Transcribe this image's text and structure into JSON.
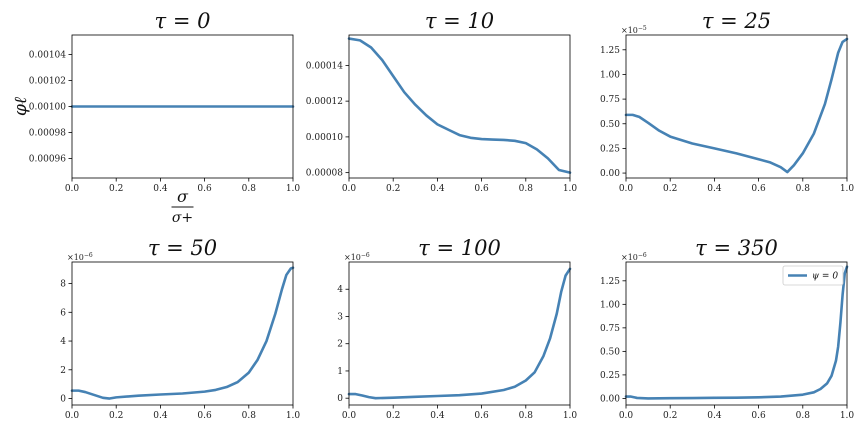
{
  "chart_data": [
    {
      "type": "line",
      "title": "τ = 0",
      "ylabel": "φℓ",
      "xlabel_num": "σ",
      "xlabel_den": "σ+",
      "multiplier": "",
      "xlim": [
        0,
        1
      ],
      "ylim": [
        0.000945,
        0.001055
      ],
      "xticks": [
        0,
        0.2,
        0.4,
        0.6,
        0.8,
        1.0
      ],
      "xtick_labels": [
        "0.0",
        "0.2",
        "0.4",
        "0.6",
        "0.8",
        "1.0"
      ],
      "yticks": [
        0.00096,
        0.00098,
        0.001,
        0.00102,
        0.00104
      ],
      "ytick_labels": [
        "0.00096",
        "0.00098",
        "0.00100",
        "0.00102",
        "0.00104"
      ],
      "series": [
        {
          "color": "#4682b4",
          "x": [
            0,
            0.25,
            0.5,
            0.75,
            1.0
          ],
          "y": [
            0.001,
            0.001,
            0.001,
            0.001,
            0.001
          ]
        }
      ]
    },
    {
      "type": "line",
      "title": "τ = 10",
      "multiplier": "",
      "xlim": [
        0,
        1
      ],
      "ylim": [
        7.7e-05,
        0.000157
      ],
      "xticks": [
        0,
        0.2,
        0.4,
        0.6,
        0.8,
        1.0
      ],
      "xtick_labels": [
        "0.0",
        "0.2",
        "0.4",
        "0.6",
        "0.8",
        "1.0"
      ],
      "yticks": [
        8e-05,
        0.0001,
        0.00012,
        0.00014
      ],
      "ytick_labels": [
        "0.00008",
        "0.00010",
        "0.00012",
        "0.00014"
      ],
      "series": [
        {
          "color": "#4682b4",
          "x": [
            0,
            0.05,
            0.1,
            0.15,
            0.2,
            0.25,
            0.3,
            0.35,
            0.4,
            0.45,
            0.5,
            0.55,
            0.6,
            0.65,
            0.7,
            0.75,
            0.8,
            0.85,
            0.9,
            0.95,
            1.0
          ],
          "y": [
            0.000155,
            0.000154,
            0.00015,
            0.000143,
            0.000134,
            0.000125,
            0.000118,
            0.000112,
            0.000107,
            0.000104,
            0.000101,
            9.95e-05,
            9.88e-05,
            9.85e-05,
            9.83e-05,
            9.78e-05,
            9.65e-05,
            9.3e-05,
            8.8e-05,
            8.15e-05,
            8e-05
          ]
        }
      ]
    },
    {
      "type": "line",
      "title": "τ = 25",
      "multiplier": "×10",
      "multiplier_exp": "−5",
      "xlim": [
        0,
        1
      ],
      "ylim": [
        -0.05,
        1.4
      ],
      "xticks": [
        0,
        0.2,
        0.4,
        0.6,
        0.8,
        1.0
      ],
      "xtick_labels": [
        "0.0",
        "0.2",
        "0.4",
        "0.6",
        "0.8",
        "1.0"
      ],
      "yticks": [
        0,
        0.25,
        0.5,
        0.75,
        1.0,
        1.25
      ],
      "ytick_labels": [
        "0.00",
        "0.25",
        "0.50",
        "0.75",
        "1.00",
        "1.25"
      ],
      "series": [
        {
          "color": "#4682b4",
          "x": [
            0,
            0.03,
            0.06,
            0.1,
            0.15,
            0.2,
            0.3,
            0.4,
            0.5,
            0.6,
            0.65,
            0.7,
            0.73,
            0.76,
            0.8,
            0.85,
            0.9,
            0.93,
            0.96,
            0.98,
            1.0
          ],
          "y": [
            0.59,
            0.59,
            0.57,
            0.51,
            0.43,
            0.37,
            0.3,
            0.25,
            0.2,
            0.14,
            0.11,
            0.06,
            0.01,
            0.08,
            0.2,
            0.4,
            0.7,
            0.95,
            1.22,
            1.33,
            1.36
          ]
        }
      ]
    },
    {
      "type": "line",
      "title": "τ = 50",
      "multiplier": "×10",
      "multiplier_exp": "−6",
      "xlim": [
        0,
        1
      ],
      "ylim": [
        -0.45,
        9.5
      ],
      "xticks": [
        0,
        0.2,
        0.4,
        0.6,
        0.8,
        1.0
      ],
      "xtick_labels": [
        "0.0",
        "0.2",
        "0.4",
        "0.6",
        "0.8",
        "1.0"
      ],
      "yticks": [
        0,
        2,
        4,
        6,
        8
      ],
      "ytick_labels": [
        "0",
        "2",
        "4",
        "6",
        "8"
      ],
      "series": [
        {
          "color": "#4682b4",
          "x": [
            0,
            0.03,
            0.06,
            0.1,
            0.14,
            0.17,
            0.2,
            0.3,
            0.4,
            0.5,
            0.6,
            0.65,
            0.7,
            0.75,
            0.8,
            0.84,
            0.88,
            0.92,
            0.95,
            0.97,
            0.99,
            1.0
          ],
          "y": [
            0.55,
            0.55,
            0.45,
            0.25,
            0.05,
            0.0,
            0.08,
            0.2,
            0.28,
            0.35,
            0.48,
            0.6,
            0.8,
            1.15,
            1.8,
            2.7,
            4.0,
            5.9,
            7.6,
            8.6,
            9.05,
            9.1
          ]
        }
      ]
    },
    {
      "type": "line",
      "title": "τ = 100",
      "multiplier": "×10",
      "multiplier_exp": "−6",
      "xlim": [
        0,
        1
      ],
      "ylim": [
        -0.25,
        5.0
      ],
      "xticks": [
        0,
        0.2,
        0.4,
        0.6,
        0.8,
        1.0
      ],
      "xtick_labels": [
        "0.0",
        "0.2",
        "0.4",
        "0.6",
        "0.8",
        "1.0"
      ],
      "yticks": [
        0,
        1,
        2,
        3,
        4
      ],
      "ytick_labels": [
        "0",
        "1",
        "2",
        "3",
        "4"
      ],
      "series": [
        {
          "color": "#4682b4",
          "x": [
            0,
            0.03,
            0.06,
            0.09,
            0.12,
            0.2,
            0.3,
            0.4,
            0.5,
            0.6,
            0.7,
            0.75,
            0.8,
            0.84,
            0.88,
            0.91,
            0.94,
            0.96,
            0.98,
            1.0
          ],
          "y": [
            0.15,
            0.15,
            0.1,
            0.04,
            0.0,
            0.02,
            0.05,
            0.08,
            0.11,
            0.17,
            0.3,
            0.42,
            0.65,
            0.95,
            1.55,
            2.2,
            3.1,
            3.9,
            4.5,
            4.75
          ]
        }
      ]
    },
    {
      "type": "line",
      "title": "τ = 350",
      "multiplier": "×10",
      "multiplier_exp": "−6",
      "xlim": [
        0,
        1
      ],
      "ylim": [
        -0.07,
        1.45
      ],
      "xticks": [
        0,
        0.2,
        0.4,
        0.6,
        0.8,
        1.0
      ],
      "xtick_labels": [
        "0.0",
        "0.2",
        "0.4",
        "0.6",
        "0.8",
        "1.0"
      ],
      "yticks": [
        0,
        0.25,
        0.5,
        0.75,
        1.0,
        1.25
      ],
      "ytick_labels": [
        "0.00",
        "0.25",
        "0.50",
        "0.75",
        "1.00",
        "1.25"
      ],
      "legend": "ψ = 0",
      "legend_position": "top-right",
      "series": [
        {
          "color": "#4682b4",
          "x": [
            0,
            0.02,
            0.05,
            0.1,
            0.2,
            0.3,
            0.4,
            0.5,
            0.6,
            0.7,
            0.8,
            0.85,
            0.88,
            0.91,
            0.93,
            0.95,
            0.96,
            0.97,
            0.98,
            0.99,
            1.0
          ],
          "y": [
            0.02,
            0.02,
            0.005,
            0.0,
            0.002,
            0.004,
            0.006,
            0.008,
            0.012,
            0.02,
            0.04,
            0.065,
            0.1,
            0.16,
            0.24,
            0.4,
            0.55,
            0.8,
            1.1,
            1.33,
            1.4
          ]
        }
      ]
    }
  ]
}
